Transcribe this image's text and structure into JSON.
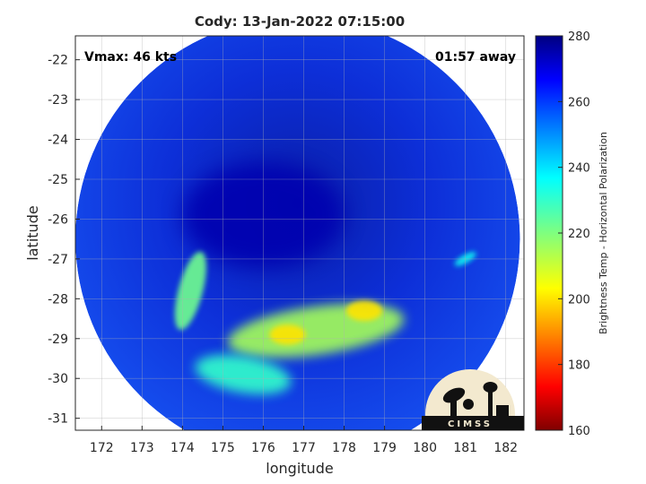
{
  "chart_data": {
    "type": "heatmap",
    "title": "Cody: 13-Jan-2022 07:15:00",
    "annotations": {
      "vmax": "Vmax: 46 kts",
      "time_away": "01:57 away"
    },
    "xlabel": "longitude",
    "ylabel": "latitude",
    "xlim": [
      171.35,
      182.45
    ],
    "ylim": [
      -31.3,
      -21.4
    ],
    "x_ticks": [
      172,
      173,
      174,
      175,
      176,
      177,
      178,
      179,
      180,
      181,
      182
    ],
    "y_ticks": [
      -22,
      -23,
      -24,
      -25,
      -26,
      -27,
      -28,
      -29,
      -30,
      -31
    ],
    "grid": true,
    "colorbar": {
      "label": "Brightness Temp - Horizontal Polarization",
      "range": [
        160,
        280
      ],
      "ticks": [
        280,
        260,
        240,
        220,
        200,
        180,
        160
      ],
      "colormap": "jet"
    },
    "swath": {
      "center_lon": 176.85,
      "center_lat": -26.5,
      "radius_deg": 5.5
    },
    "features": [
      {
        "name": "cold-core",
        "lon": 176.0,
        "lat": -25.9,
        "value": 275
      },
      {
        "name": "warm-band",
        "lon": 177.3,
        "lat": -28.8,
        "value": 215
      },
      {
        "name": "warm-spot",
        "lon": 178.5,
        "lat": -28.3,
        "value": 200
      },
      {
        "name": "warm-spot",
        "lon": 176.6,
        "lat": -28.9,
        "value": 200
      },
      {
        "name": "arm-west",
        "lon": 174.2,
        "lat": -27.8,
        "value": 222
      },
      {
        "name": "arm-south",
        "lon": 175.5,
        "lat": -29.9,
        "value": 230
      },
      {
        "name": "band-east",
        "lon": 181.0,
        "lat": -27.0,
        "value": 235
      }
    ],
    "logo": "CIMSS"
  }
}
